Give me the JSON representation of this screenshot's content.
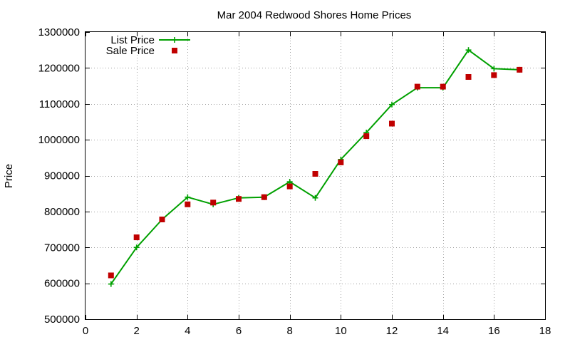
{
  "chart_data": {
    "type": "line",
    "title": "Mar 2004 Redwood Shores Home Prices",
    "xlabel": "",
    "ylabel": "Price",
    "xlim": [
      0,
      18
    ],
    "ylim": [
      500000,
      1300000
    ],
    "x_ticks": [
      0,
      2,
      4,
      6,
      8,
      10,
      12,
      14,
      16,
      18
    ],
    "y_ticks": [
      500000,
      600000,
      700000,
      800000,
      900000,
      1000000,
      1100000,
      1200000,
      1300000
    ],
    "grid": true,
    "legend_position": "top-left",
    "series": [
      {
        "name": "List Price",
        "style": "line-with-plus-markers",
        "color": "#00a000",
        "x": [
          1,
          2,
          3,
          4,
          5,
          6,
          7,
          8,
          9,
          10,
          11,
          12,
          13,
          14,
          15,
          16,
          17
        ],
        "y": [
          598000,
          700000,
          778000,
          840000,
          820000,
          838000,
          840000,
          883000,
          838000,
          945000,
          1020000,
          1098000,
          1145000,
          1145000,
          1250000,
          1198000,
          1195000
        ]
      },
      {
        "name": "Sale Price",
        "style": "square-markers",
        "color": "#c00000",
        "x": [
          1,
          2,
          3,
          4,
          5,
          6,
          7,
          8,
          9,
          10,
          11,
          12,
          13,
          14,
          15,
          16,
          17
        ],
        "y": [
          622000,
          728000,
          778000,
          820000,
          825000,
          835000,
          840000,
          870000,
          905000,
          937000,
          1010000,
          1045000,
          1148000,
          1148000,
          1175000,
          1180000,
          1195000
        ]
      }
    ]
  }
}
